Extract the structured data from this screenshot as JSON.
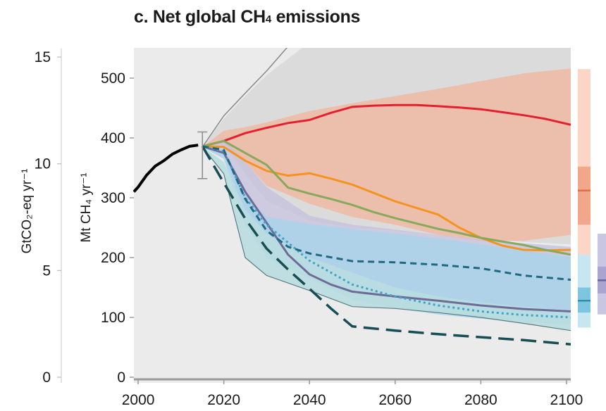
{
  "chart_data": {
    "type": "line",
    "title_main": "c. Net global CH",
    "title_sub": "4",
    "title_rest": " emissions",
    "ylabel_left": "GtCO₂-eq yr⁻¹",
    "ylabel_right": "Mt CH₄ yr⁻¹",
    "xlim": [
      1999,
      2101
    ],
    "ylim": [
      0,
      550
    ],
    "ylim_left": [
      0,
      15.4
    ],
    "x_ticks": [
      2000,
      2020,
      2040,
      2060,
      2080,
      2100
    ],
    "y_ticks": [
      0,
      100,
      200,
      300,
      400,
      500
    ],
    "y_ticks_left": [
      0,
      5,
      10,
      15
    ],
    "historical": {
      "x": [
        1999,
        2000,
        2002,
        2004,
        2006,
        2008,
        2010,
        2012,
        2014
      ],
      "y": [
        310,
        318,
        338,
        353,
        362,
        373,
        380,
        386,
        388
      ]
    },
    "historical_range": {
      "x": 2015,
      "low": 332,
      "high": 410
    },
    "ranges": [
      {
        "name": "grey",
        "color": "#d3d3d3",
        "opacity": 0.65,
        "x": [
          2015,
          2020,
          2025,
          2030,
          2040,
          2050,
          2060,
          2070,
          2080,
          2090,
          2101
        ],
        "upper": [
          385,
          432,
          470,
          505,
          560,
          590,
          600,
          600,
          600,
          600,
          600
        ],
        "lower": [
          385,
          390,
          340,
          295,
          262,
          250,
          245,
          238,
          232,
          226,
          222
        ]
      },
      {
        "name": "orange",
        "color": "#f2b49c",
        "opacity": 0.75,
        "x": [
          2015,
          2020,
          2025,
          2030,
          2040,
          2050,
          2060,
          2070,
          2080,
          2090,
          2101
        ],
        "upper": [
          385,
          412,
          418,
          426,
          445,
          458,
          470,
          482,
          495,
          508,
          516
        ],
        "lower": [
          385,
          392,
          360,
          320,
          290,
          268,
          255,
          238,
          228,
          228,
          238
        ]
      },
      {
        "name": "purple",
        "color": "#c4bfdc",
        "opacity": 0.75,
        "x": [
          2015,
          2020,
          2025,
          2030,
          2040,
          2050,
          2060,
          2070,
          2080,
          2090,
          2101
        ],
        "upper": [
          385,
          398,
          360,
          318,
          270,
          255,
          247,
          238,
          230,
          224,
          218
        ],
        "lower": [
          385,
          375,
          270,
          215,
          165,
          140,
          130,
          120,
          113,
          107,
          100
        ]
      },
      {
        "name": "blue",
        "color": "#a9d3ea",
        "opacity": 0.85,
        "x": [
          2015,
          2020,
          2025,
          2030,
          2040,
          2050,
          2060,
          2070,
          2080,
          2090,
          2101
        ],
        "upper": [
          385,
          375,
          305,
          268,
          256,
          248,
          240,
          232,
          222,
          212,
          200
        ],
        "lower": [
          385,
          365,
          255,
          200,
          165,
          130,
          115,
          105,
          98,
          92,
          88
        ]
      },
      {
        "name": "teal",
        "color": "#b9dde0",
        "opacity": 0.9,
        "x": [
          2015,
          2020,
          2025,
          2030,
          2040,
          2050,
          2060,
          2070,
          2080,
          2090,
          2101
        ],
        "upper": [
          385,
          360,
          280,
          240,
          200,
          175,
          150,
          135,
          125,
          118,
          112
        ],
        "lower": [
          385,
          340,
          200,
          170,
          145,
          118,
          115,
          108,
          100,
          90,
          78
        ]
      }
    ],
    "range_outline": {
      "color": "#5a7d7e",
      "x": [
        2015,
        2020,
        2025,
        2030,
        2040,
        2050,
        2060,
        2070,
        2080,
        2090,
        2101
      ],
      "lower": [
        385,
        340,
        200,
        170,
        145,
        118,
        115,
        108,
        100,
        90,
        78
      ]
    },
    "grey_line": {
      "color": "#8a8a8a",
      "x": [
        2015,
        2020,
        2025,
        2030,
        2035
      ],
      "y": [
        385,
        437,
        475,
        512,
        553
      ]
    },
    "series": [
      {
        "name": "red",
        "color": "#e4202f",
        "width": 3,
        "dash": "",
        "x": [
          2015,
          2020,
          2025,
          2030,
          2035,
          2040,
          2045,
          2050,
          2055,
          2060,
          2065,
          2070,
          2075,
          2080,
          2085,
          2090,
          2095,
          2101
        ],
        "y": [
          386,
          395,
          408,
          417,
          425,
          430,
          442,
          452,
          454,
          455,
          455,
          453,
          451,
          448,
          443,
          438,
          432,
          422
        ]
      },
      {
        "name": "orange",
        "color": "#f4941e",
        "width": 3,
        "dash": "",
        "x": [
          2015,
          2020,
          2025,
          2030,
          2035,
          2040,
          2045,
          2050,
          2055,
          2060,
          2065,
          2070,
          2075,
          2080,
          2085,
          2090,
          2095,
          2101
        ],
        "y": [
          386,
          385,
          362,
          345,
          337,
          341,
          332,
          322,
          308,
          294,
          283,
          272,
          250,
          233,
          220,
          213,
          212,
          213
        ]
      },
      {
        "name": "green",
        "color": "#86a95b",
        "width": 3,
        "dash": "",
        "x": [
          2015,
          2020,
          2025,
          2030,
          2035,
          2040,
          2045,
          2050,
          2055,
          2060,
          2065,
          2070,
          2075,
          2080,
          2085,
          2090,
          2095,
          2101
        ],
        "y": [
          386,
          395,
          375,
          355,
          317,
          307,
          298,
          288,
          276,
          266,
          257,
          248,
          241,
          233,
          227,
          221,
          213,
          205
        ]
      },
      {
        "name": "purple",
        "color": "#6e6b96",
        "width": 3,
        "dash": "",
        "x": [
          2015,
          2020,
          2025,
          2030,
          2035,
          2040,
          2045,
          2050,
          2060,
          2070,
          2080,
          2090,
          2101
        ],
        "y": [
          386,
          375,
          310,
          258,
          205,
          172,
          155,
          143,
          135,
          128,
          120,
          114,
          110
        ]
      },
      {
        "name": "blue-dotted",
        "color": "#3ea4c8",
        "width": 3,
        "dash": "3,4",
        "x": [
          2015,
          2020,
          2025,
          2030,
          2035,
          2040,
          2045,
          2050,
          2060,
          2070,
          2080,
          2090,
          2101
        ],
        "y": [
          386,
          378,
          300,
          255,
          225,
          195,
          175,
          155,
          135,
          120,
          110,
          104,
          100
        ]
      },
      {
        "name": "teal-dashed",
        "color": "#1f6a82",
        "width": 3,
        "dash": "9,6",
        "x": [
          2015,
          2020,
          2025,
          2030,
          2035,
          2040,
          2050,
          2060,
          2070,
          2080,
          2090,
          2101
        ],
        "y": [
          386,
          380,
          298,
          245,
          218,
          207,
          194,
          192,
          188,
          182,
          170,
          163
        ]
      },
      {
        "name": "dark-dashed",
        "color": "#174d53",
        "width": 3.5,
        "dash": "22,10",
        "x": [
          2015,
          2020,
          2025,
          2030,
          2035,
          2040,
          2045,
          2050,
          2060,
          2070,
          2080,
          2090,
          2101
        ],
        "y": [
          386,
          325,
          265,
          215,
          180,
          148,
          115,
          85,
          78,
          72,
          67,
          62,
          55
        ]
      }
    ],
    "side_bars": [
      {
        "name": "orange-2100",
        "column": 0,
        "fill": "#fbd6c7",
        "low": 83,
        "high": 515,
        "inner_fill": "#f2a78a",
        "inner_low": 255,
        "inner_high": 352,
        "median": 312,
        "median_color": "#de6f49"
      },
      {
        "name": "blue-2100",
        "column": 0,
        "fill": "#c8e5f2",
        "low": 83,
        "high": 205,
        "inner_fill": "#7ec6e0",
        "inner_low": 108,
        "inner_high": 150,
        "median": 128,
        "median_color": "#2b8fb5"
      },
      {
        "name": "purple-2100",
        "column": 1,
        "fill": "#c9c6e3",
        "low": 105,
        "high": 240,
        "inner_fill": "#a9a5d0",
        "inner_low": 140,
        "inner_high": 185,
        "median": 162,
        "median_color": "#6866a6"
      }
    ],
    "colors": {
      "plot_background": "#ebebeb",
      "historical": "#000000",
      "axis": "#9a9a9a",
      "text": "#1a1a1a"
    }
  }
}
